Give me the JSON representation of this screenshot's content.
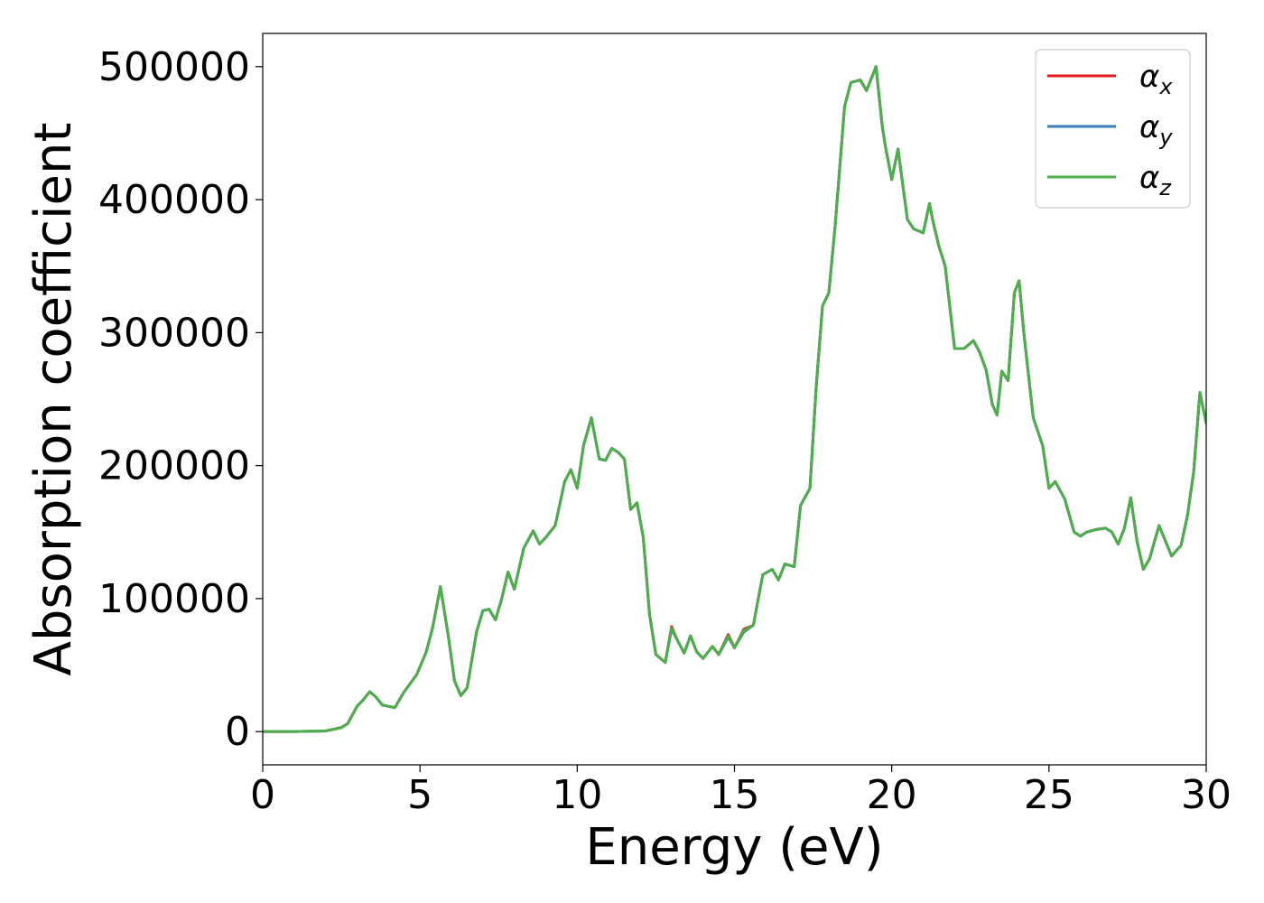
{
  "chart_data": {
    "type": "line",
    "title": "",
    "xlabel": "Energy (eV)",
    "ylabel": "Absorption coefficient",
    "xlim": [
      0,
      30
    ],
    "ylim": [
      -25000,
      525000
    ],
    "xticks": [
      0,
      5,
      10,
      15,
      20,
      25,
      30
    ],
    "xtick_labels": [
      "0",
      "5",
      "10",
      "15",
      "20",
      "25",
      "30"
    ],
    "yticks": [
      0,
      100000,
      200000,
      300000,
      400000,
      500000
    ],
    "ytick_labels": [
      "0",
      "100000",
      "200000",
      "300000",
      "400000",
      "500000"
    ],
    "grid": false,
    "legend_position": "top-right",
    "x": [
      0,
      1,
      2,
      2.5,
      2.7,
      3.0,
      3.2,
      3.4,
      3.6,
      3.8,
      4.0,
      4.2,
      4.5,
      4.9,
      5.2,
      5.4,
      5.65,
      5.9,
      6.1,
      6.3,
      6.5,
      6.8,
      7.0,
      7.2,
      7.4,
      7.6,
      7.8,
      8.0,
      8.3,
      8.6,
      8.8,
      9.0,
      9.3,
      9.6,
      9.8,
      10.0,
      10.2,
      10.45,
      10.7,
      10.9,
      11.1,
      11.3,
      11.5,
      11.7,
      11.9,
      12.1,
      12.3,
      12.5,
      12.8,
      13.0,
      13.2,
      13.4,
      13.6,
      13.8,
      14.0,
      14.3,
      14.5,
      14.8,
      15.0,
      15.3,
      15.6,
      15.9,
      16.2,
      16.4,
      16.6,
      16.9,
      17.1,
      17.4,
      17.6,
      17.8,
      18.0,
      18.2,
      18.5,
      18.7,
      19.0,
      19.2,
      19.5,
      19.7,
      19.8,
      20.0,
      20.2,
      20.5,
      20.7,
      21.0,
      21.2,
      21.3,
      21.5,
      21.7,
      22.0,
      22.3,
      22.6,
      22.8,
      23.0,
      23.2,
      23.35,
      23.5,
      23.7,
      23.9,
      24.05,
      24.2,
      24.5,
      24.8,
      25.0,
      25.2,
      25.5,
      25.8,
      26.0,
      26.2,
      26.5,
      26.8,
      27.0,
      27.2,
      27.4,
      27.6,
      27.8,
      28.0,
      28.2,
      28.5,
      28.9,
      29.2,
      29.4,
      29.6,
      29.8,
      30.0
    ],
    "series": [
      {
        "name": "α_x",
        "color": "#e41a1c",
        "values": [
          0,
          0,
          500,
          3000,
          6000,
          19000,
          24000,
          30000,
          26000,
          20000,
          19000,
          18000,
          30000,
          43000,
          60000,
          78000,
          109000,
          72000,
          38000,
          27000,
          33000,
          75000,
          91000,
          92000,
          84000,
          100000,
          120000,
          107000,
          138000,
          151000,
          141000,
          146000,
          155000,
          188000,
          197000,
          183000,
          215000,
          236000,
          205000,
          204000,
          213000,
          210000,
          205000,
          167000,
          172000,
          146000,
          88000,
          58000,
          52000,
          79000,
          68000,
          59000,
          72000,
          60000,
          55000,
          64000,
          58000,
          73000,
          63000,
          77000,
          80000,
          118000,
          122000,
          114000,
          126000,
          124000,
          170000,
          183000,
          260000,
          320000,
          330000,
          380000,
          470000,
          488000,
          490000,
          482000,
          500000,
          455000,
          440000,
          415000,
          438000,
          385000,
          378000,
          375000,
          397000,
          385000,
          365000,
          350000,
          288000,
          288000,
          294000,
          285000,
          272000,
          246000,
          238000,
          271000,
          264000,
          330000,
          339000,
          300000,
          236000,
          215000,
          183000,
          188000,
          175000,
          150000,
          147000,
          150000,
          152000,
          153000,
          150000,
          141000,
          153000,
          176000,
          143000,
          122000,
          130000,
          155000,
          132000,
          140000,
          162000,
          195000,
          255000,
          232000
        ]
      },
      {
        "name": "α_y",
        "color": "#377eb8",
        "values": [
          0,
          0,
          500,
          3000,
          6000,
          19000,
          24000,
          30000,
          26000,
          20000,
          19000,
          18000,
          30000,
          43000,
          60000,
          78000,
          109000,
          72000,
          38000,
          27000,
          33000,
          75000,
          91000,
          92000,
          84000,
          100000,
          120000,
          107000,
          138000,
          151000,
          141000,
          146000,
          155000,
          188000,
          197000,
          183000,
          215000,
          236000,
          205000,
          204000,
          213000,
          210000,
          205000,
          167000,
          172000,
          146000,
          88000,
          58000,
          52000,
          77000,
          68000,
          59000,
          72000,
          60000,
          55000,
          64000,
          58000,
          71000,
          63000,
          75000,
          80000,
          118000,
          122000,
          114000,
          126000,
          124000,
          170000,
          183000,
          260000,
          320000,
          330000,
          380000,
          470000,
          488000,
          490000,
          482000,
          500000,
          455000,
          440000,
          415000,
          438000,
          385000,
          378000,
          375000,
          397000,
          385000,
          365000,
          350000,
          288000,
          288000,
          294000,
          285000,
          272000,
          246000,
          238000,
          271000,
          264000,
          330000,
          339000,
          300000,
          236000,
          215000,
          183000,
          188000,
          175000,
          150000,
          147000,
          150000,
          152000,
          153000,
          150000,
          141000,
          153000,
          176000,
          143000,
          122000,
          130000,
          155000,
          132000,
          140000,
          162000,
          195000,
          255000,
          232000
        ]
      },
      {
        "name": "α_z",
        "color": "#4daf4a",
        "values": [
          0,
          0,
          500,
          3000,
          6000,
          19000,
          24000,
          30000,
          26000,
          20000,
          19000,
          18000,
          30000,
          43000,
          60000,
          78000,
          109000,
          72000,
          38000,
          27000,
          33000,
          75000,
          91000,
          92000,
          84000,
          100000,
          120000,
          107000,
          138000,
          151000,
          141000,
          146000,
          155000,
          188000,
          197000,
          183000,
          215000,
          236000,
          205000,
          204000,
          213000,
          210000,
          205000,
          167000,
          172000,
          146000,
          88000,
          58000,
          52000,
          78000,
          68000,
          59000,
          72000,
          60000,
          55000,
          64000,
          58000,
          72000,
          63000,
          76000,
          80000,
          118000,
          122000,
          114000,
          126000,
          124000,
          170000,
          183000,
          260000,
          320000,
          330000,
          380000,
          470000,
          488000,
          490000,
          482000,
          500000,
          455000,
          440000,
          415000,
          438000,
          385000,
          378000,
          375000,
          397000,
          385000,
          365000,
          350000,
          288000,
          288000,
          294000,
          285000,
          272000,
          246000,
          238000,
          271000,
          264000,
          330000,
          339000,
          300000,
          236000,
          215000,
          183000,
          188000,
          175000,
          150000,
          147000,
          150000,
          152000,
          153000,
          150000,
          141000,
          153000,
          176000,
          143000,
          122000,
          130000,
          155000,
          132000,
          140000,
          162000,
          195000,
          255000,
          232000
        ]
      }
    ]
  }
}
